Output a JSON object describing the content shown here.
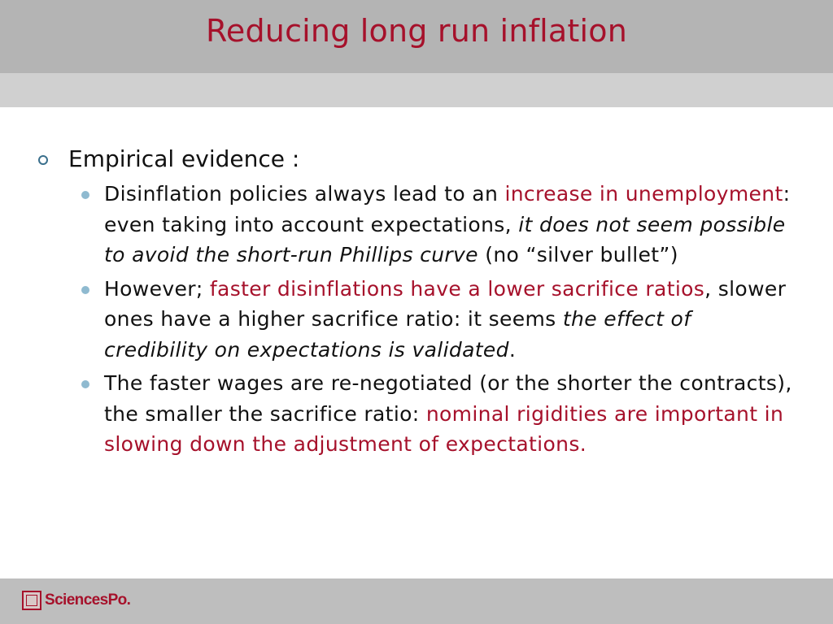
{
  "slide": {
    "title": "Reducing long run inflation"
  },
  "content": {
    "heading": "Empirical evidence :",
    "bullets": [
      {
        "parts": [
          {
            "t": "Disinflation policies always lead to an ",
            "s": "normal"
          },
          {
            "t": "increase in unemployment",
            "s": "red"
          },
          {
            "t": ": even taking into account expectations, ",
            "s": "normal"
          },
          {
            "t": "it does not seem possible to avoid the short-run  Phillips curve",
            "s": "italic"
          },
          {
            "t": " (no “silver bullet”)",
            "s": "normal"
          }
        ]
      },
      {
        "parts": [
          {
            "t": "However; ",
            "s": "normal"
          },
          {
            "t": "faster disinflations have a lower sacrifice ratios",
            "s": "red"
          },
          {
            "t": ", slower ones have a higher sacrifice ratio: it seems ",
            "s": "normal"
          },
          {
            "t": "the effect of credibility on expectations is validated",
            "s": "italic"
          },
          {
            "t": ".",
            "s": "normal"
          }
        ]
      },
      {
        "parts": [
          {
            "t": "The faster wages are re-negotiated (or the shorter the contracts), the smaller the sacrifice ratio: ",
            "s": "normal"
          },
          {
            "t": "nominal rigidities are important in slowing down the adjustment of expectations.",
            "s": "red"
          }
        ]
      }
    ]
  },
  "footer": {
    "logo_text": "SciencesPo."
  },
  "colors": {
    "accent": "#a6112b",
    "title_band": "#b4b4b4",
    "sub_band": "#d0d0d0",
    "footer_band": "#bebebe",
    "bullet_ring": "#3a6f8c",
    "bullet_dot": "#8fbad0"
  },
  "icons": {
    "level1_bullet": "ring-bullet-icon",
    "level2_bullet": "dot-bullet-icon",
    "logo": "sciencespo-logo-icon"
  }
}
